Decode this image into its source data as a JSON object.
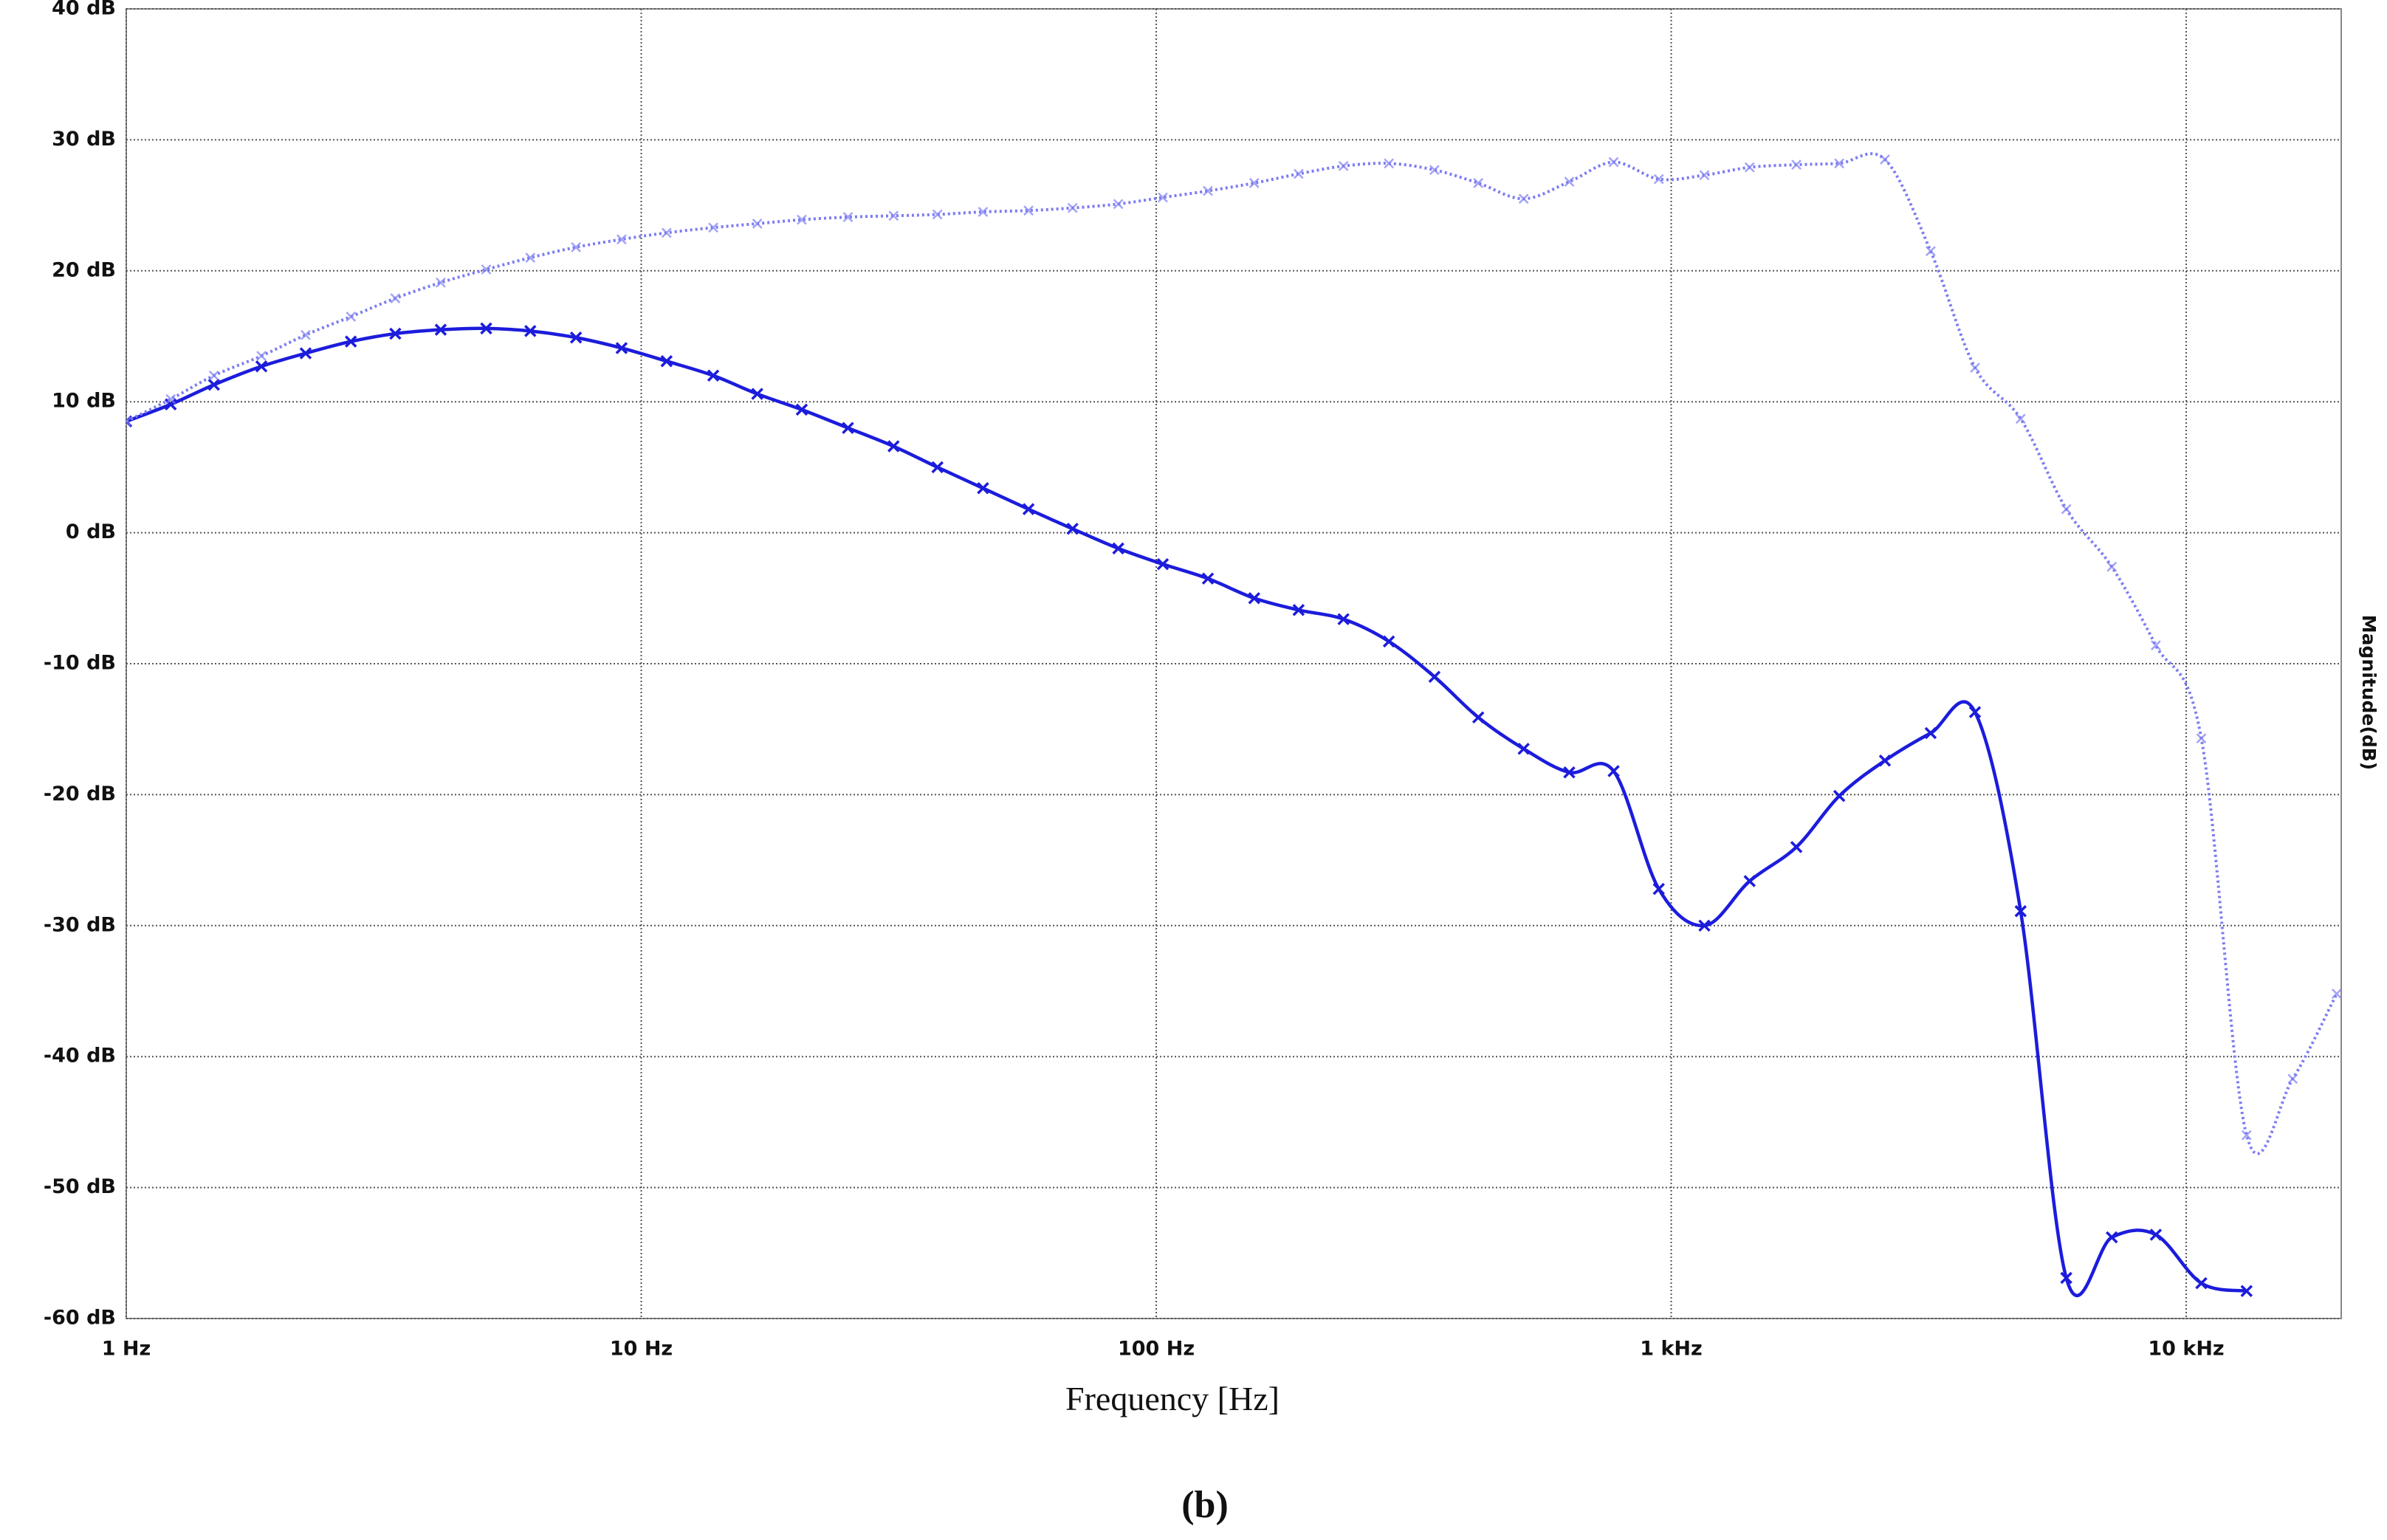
{
  "chart_data": {
    "type": "line",
    "xlabel": "Frequency [Hz]",
    "ylabel": "Magnitude(dB)",
    "caption": "(b)",
    "xscale": "log",
    "xlim": [
      1,
      20000
    ],
    "ylim": [
      -60,
      40
    ],
    "grid": true,
    "xticks": [
      {
        "value": 1,
        "label": "1 Hz"
      },
      {
        "value": 10,
        "label": "10 Hz"
      },
      {
        "value": 100,
        "label": "100 Hz"
      },
      {
        "value": 1000,
        "label": "1 kHz"
      },
      {
        "value": 10000,
        "label": "10 kHz"
      }
    ],
    "yticks": [
      {
        "value": -60,
        "label": "-60 dB"
      },
      {
        "value": -50,
        "label": "-50 dB"
      },
      {
        "value": -40,
        "label": "-40 dB"
      },
      {
        "value": -30,
        "label": "-30 dB"
      },
      {
        "value": -20,
        "label": "-20 dB"
      },
      {
        "value": -10,
        "label": "-10 dB"
      },
      {
        "value": 0,
        "label": "0 dB"
      },
      {
        "value": 10,
        "label": "10 dB"
      },
      {
        "value": 20,
        "label": "20 dB"
      },
      {
        "value": 30,
        "label": "30 dB"
      },
      {
        "value": 40,
        "label": "40 dB"
      }
    ],
    "series": [
      {
        "color": "#1c1cdc",
        "style": "solid",
        "x": [
          1,
          1.22,
          1.48,
          1.83,
          2.23,
          2.73,
          3.33,
          4.08,
          5.0,
          6.09,
          7.47,
          9.16,
          11.2,
          13.8,
          16.8,
          20.5,
          25.2,
          30.9,
          37.6,
          46.1,
          56.5,
          68.8,
          84.4,
          103,
          126,
          155,
          189,
          231,
          283,
          347,
          422,
          517,
          634,
          773,
          946,
          1160,
          1420,
          1750,
          2120,
          2600,
          3190,
          3890,
          4770,
          5850,
          7170,
          8730,
          10700,
          13100
        ],
        "values": [
          8.5,
          9.8,
          11.3,
          12.7,
          13.7,
          14.6,
          15.2,
          15.5,
          15.6,
          15.4,
          14.9,
          14.1,
          13.1,
          12.0,
          10.6,
          9.4,
          8.0,
          6.6,
          5.0,
          3.4,
          1.8,
          0.3,
          -1.2,
          -2.4,
          -3.5,
          -5.0,
          -5.9,
          -6.6,
          -8.3,
          -11.0,
          -14.1,
          -16.5,
          -18.3,
          -18.2,
          -27.2,
          -30.0,
          -26.6,
          -24.0,
          -20.1,
          -17.4,
          -15.3,
          -13.7,
          -28.9,
          -56.9,
          -53.8,
          -53.6,
          -57.3,
          -57.9
        ]
      },
      {
        "color": "#7c7cf2",
        "style": "dotted",
        "x": [
          1,
          1.22,
          1.48,
          1.83,
          2.23,
          2.73,
          3.33,
          4.08,
          5.0,
          6.09,
          7.47,
          9.16,
          11.2,
          13.8,
          16.8,
          20.5,
          25.2,
          30.9,
          37.6,
          46.1,
          56.5,
          68.8,
          84.4,
          103,
          126,
          155,
          189,
          231,
          283,
          347,
          422,
          517,
          634,
          773,
          946,
          1160,
          1420,
          1750,
          2120,
          2600,
          3190,
          3890,
          4770,
          5850,
          7170,
          8730,
          10700,
          13100,
          16100,
          19600
        ],
        "values": [
          8.5,
          10.2,
          12.0,
          13.5,
          15.1,
          16.5,
          17.9,
          19.1,
          20.1,
          21.0,
          21.8,
          22.4,
          22.9,
          23.3,
          23.6,
          23.9,
          24.1,
          24.2,
          24.3,
          24.5,
          24.6,
          24.8,
          25.1,
          25.6,
          26.1,
          26.7,
          27.4,
          28.0,
          28.2,
          27.7,
          26.7,
          25.5,
          26.8,
          28.3,
          27.0,
          27.3,
          27.9,
          28.1,
          28.2,
          28.5,
          21.5,
          12.6,
          8.7,
          1.8,
          -2.6,
          -8.6,
          -15.7,
          -46.0,
          -41.7,
          -35.2
        ]
      }
    ]
  }
}
